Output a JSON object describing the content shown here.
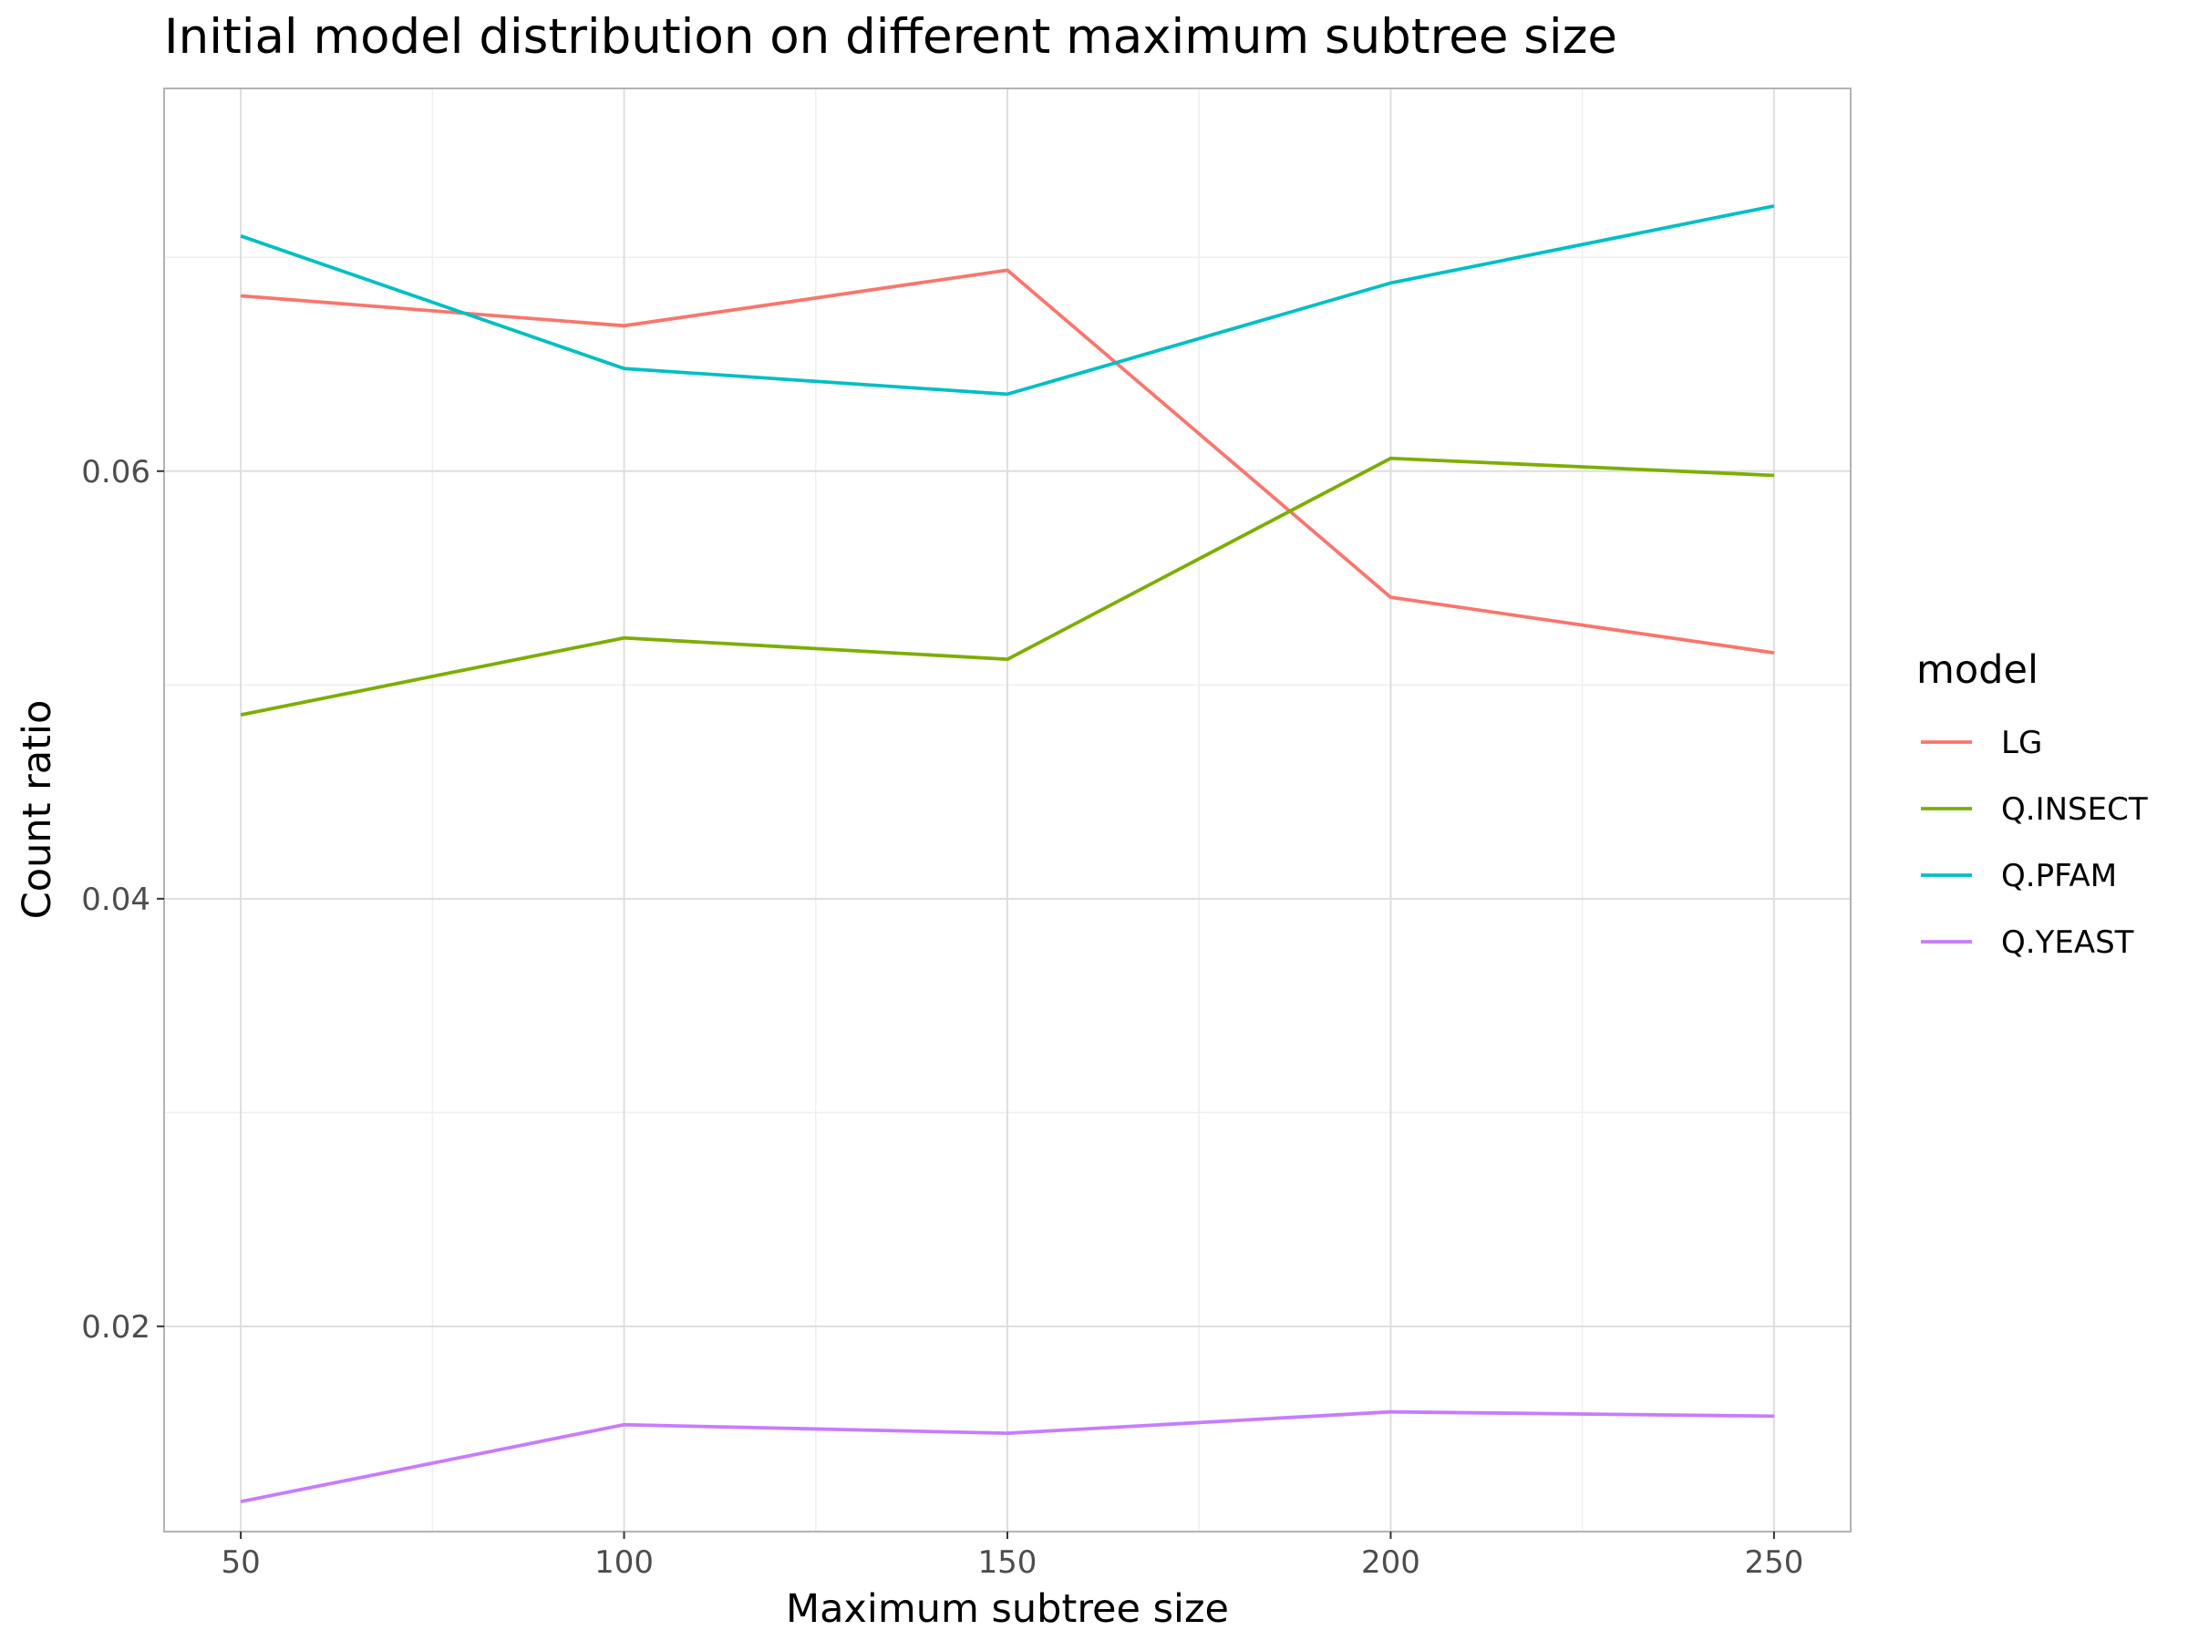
{
  "chart_data": {
    "type": "line",
    "title": "Initial model distribution on different maximum subtree size",
    "xlabel": "Maximum subtree size",
    "ylabel": "Count ratio",
    "x": [
      50,
      100,
      150,
      200,
      250
    ],
    "x_ticks": [
      50,
      100,
      150,
      200,
      250
    ],
    "x_tick_labels": [
      "50",
      "100",
      "150",
      "200",
      "250"
    ],
    "y_ticks": [
      0.02,
      0.04,
      0.06
    ],
    "y_tick_labels": [
      "0.02",
      "0.04",
      "0.06"
    ],
    "xlim": [
      40,
      260
    ],
    "ylim": [
      0.0104,
      0.0779
    ],
    "grid": true,
    "legend_title": "model",
    "legend_position": "right",
    "series": [
      {
        "name": "LG",
        "color": "#F8766D",
        "values": [
          0.0682,
          0.0668,
          0.0694,
          0.0541,
          0.0515
        ]
      },
      {
        "name": "Q.INSECT",
        "color": "#7CAE00",
        "values": [
          0.0486,
          0.0522,
          0.0512,
          0.0606,
          0.0598
        ]
      },
      {
        "name": "Q.PFAM",
        "color": "#00BFC4",
        "values": [
          0.071,
          0.0648,
          0.0636,
          0.0688,
          0.0724
        ]
      },
      {
        "name": "Q.YEAST",
        "color": "#C77CFF",
        "values": [
          0.0118,
          0.0154,
          0.015,
          0.016,
          0.0158
        ]
      }
    ]
  }
}
